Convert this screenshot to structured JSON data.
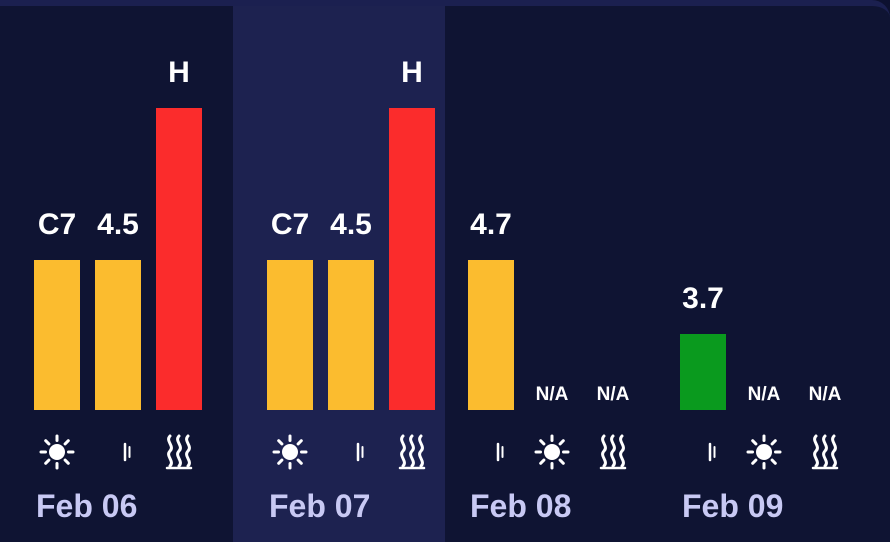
{
  "colors": {
    "background": "#0f1433",
    "selected_column": "#1d2250",
    "yellow": "#fbbc2f",
    "red": "#fb2c2c",
    "green": "#0a9a1e",
    "date_text": "#c8c9f4",
    "value_text": "#ffffff",
    "icon": "#ffffff"
  },
  "days": [
    {
      "date": "Feb 06",
      "selected": false,
      "slots": [
        {
          "icon": "sun-icon",
          "value": "C7",
          "level": "yellow",
          "has_bar": true
        },
        {
          "icon": "moon-icon",
          "value": "4.5",
          "level": "yellow",
          "has_bar": true
        },
        {
          "icon": "heat-icon",
          "value": "H",
          "level": "red",
          "has_bar": true
        }
      ]
    },
    {
      "date": "Feb 07",
      "selected": true,
      "slots": [
        {
          "icon": "sun-icon",
          "value": "C7",
          "level": "yellow",
          "has_bar": true
        },
        {
          "icon": "moon-icon",
          "value": "4.5",
          "level": "yellow",
          "has_bar": true
        },
        {
          "icon": "heat-icon",
          "value": "H",
          "level": "red",
          "has_bar": true
        }
      ]
    },
    {
      "date": "Feb 08",
      "selected": false,
      "slots": [
        {
          "icon": "moon-icon",
          "value": "4.7",
          "level": "yellow",
          "has_bar": true
        },
        {
          "icon": "sun-icon",
          "value": "N/A",
          "level": "none",
          "has_bar": false
        },
        {
          "icon": "heat-icon",
          "value": "N/A",
          "level": "none",
          "has_bar": false
        }
      ]
    },
    {
      "date": "Feb 09",
      "selected": false,
      "slots": [
        {
          "icon": "moon-icon",
          "value": "3.7",
          "level": "green",
          "has_bar": true
        },
        {
          "icon": "sun-icon",
          "value": "N/A",
          "level": "none",
          "has_bar": false
        },
        {
          "icon": "heat-icon",
          "value": "N/A",
          "level": "none",
          "has_bar": false
        }
      ]
    }
  ]
}
